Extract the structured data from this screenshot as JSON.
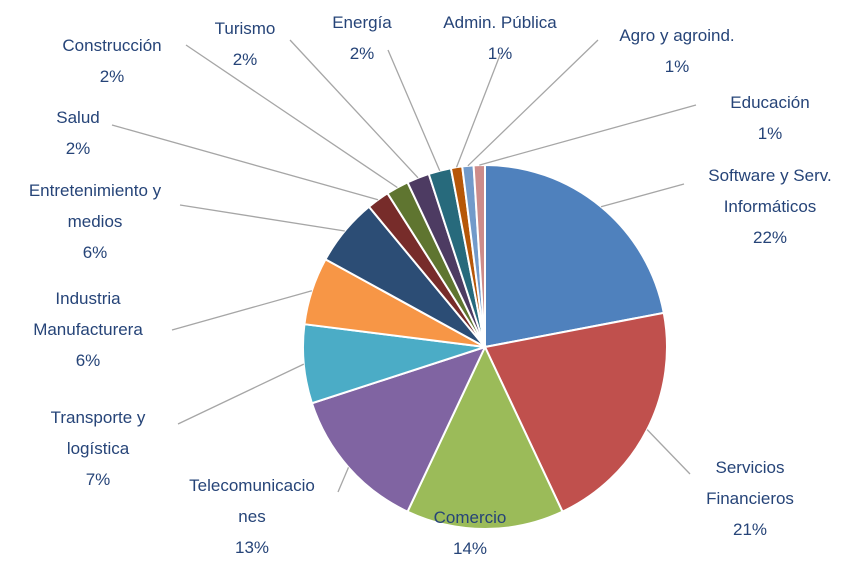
{
  "chart_data": {
    "type": "pie",
    "categories": [
      "Software y Serv. Informáticos",
      "Servicios Financieros",
      "Comercio",
      "Telecomunicaciones",
      "Transporte y logística",
      "Industria Manufacturera",
      "Entretenimiento y medios",
      "Salud",
      "Construcción",
      "Turismo",
      "Energía",
      "Admin. Pública",
      "Agro y agroind.",
      "Educación"
    ],
    "values": [
      22,
      21,
      14,
      13,
      7,
      6,
      6,
      2,
      2,
      2,
      2,
      1,
      1,
      1
    ],
    "value_labels": [
      "22%",
      "21%",
      "14%",
      "13%",
      "7%",
      "6%",
      "6%",
      "2%",
      "2%",
      "2%",
      "2%",
      "1%",
      "1%",
      "1%"
    ],
    "colors": [
      "#4f81bd",
      "#c0504d",
      "#9bbb59",
      "#8064a2",
      "#4bacc6",
      "#f79646",
      "#2c4d75",
      "#772c2a",
      "#5f7530",
      "#4d3b62",
      "#276a7c",
      "#b65708",
      "#729aca",
      "#cd8c8a"
    ]
  }
}
